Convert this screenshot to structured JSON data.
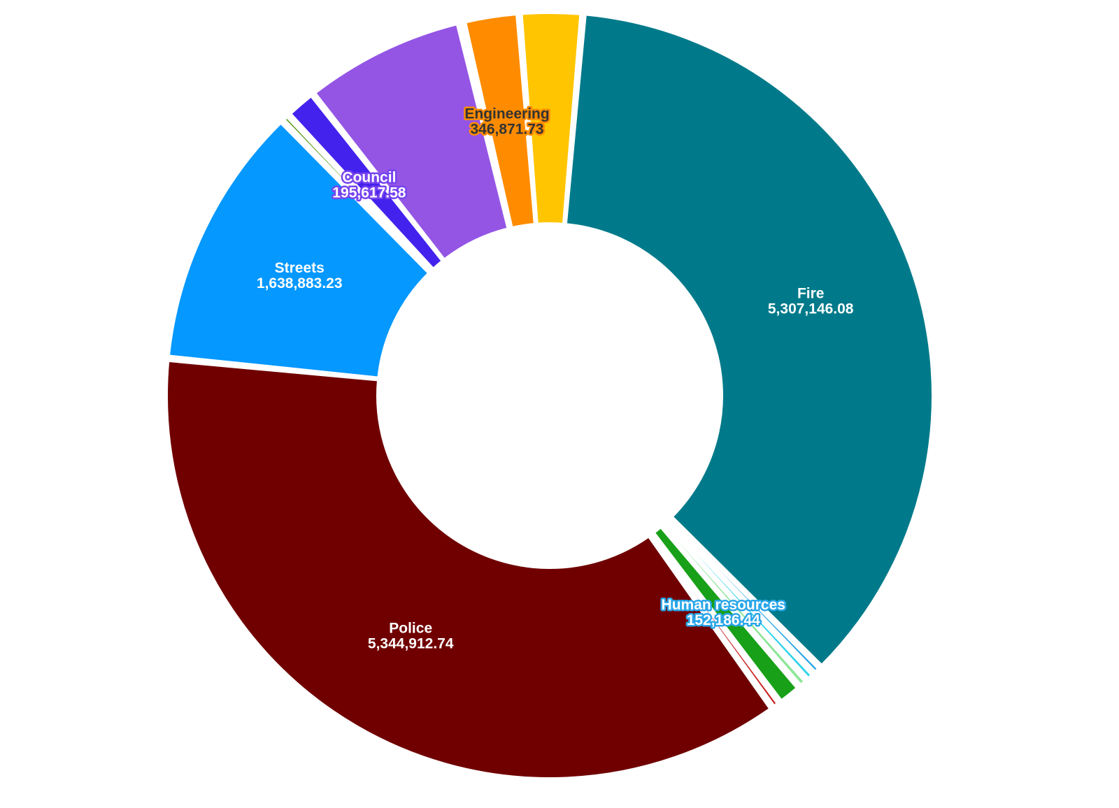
{
  "chart_data": {
    "type": "pie",
    "donut": true,
    "slices": [
      {
        "label": "Fire",
        "value": 5307146.08,
        "value_text": "5,307,146.08",
        "color": "#007a8a",
        "label_color": "#ffffff",
        "halo_color": "#007a8a",
        "show_label": true
      },
      {
        "label": "",
        "value": 55000,
        "value_text": "",
        "color": "#1ea1e6",
        "show_label": false
      },
      {
        "label": "",
        "value": 58000,
        "value_text": "",
        "color": "#2fd3ea",
        "show_label": false
      },
      {
        "label": "",
        "value": 62000,
        "value_text": "",
        "color": "#8ee698",
        "show_label": false
      },
      {
        "label": "Human resources",
        "value": 152186.44,
        "value_text": "152,186.44",
        "color": "#18a018",
        "label_color": "#ffffff",
        "halo_color": "#2aa6e8",
        "show_label": true
      },
      {
        "label": "",
        "value": 55000,
        "value_text": "",
        "color": "#cc2222",
        "show_label": false
      },
      {
        "label": "Police",
        "value": 5344912.74,
        "value_text": "5,344,912.74",
        "color": "#700000",
        "label_color": "#ffffff",
        "halo_color": "#700000",
        "show_label": true
      },
      {
        "label": "Streets",
        "value": 1638883.23,
        "value_text": "1,638,883.23",
        "color": "#0598ff",
        "label_color": "#ffffff",
        "halo_color": "#0598ff",
        "show_label": true
      },
      {
        "label": "",
        "value": 52000,
        "value_text": "",
        "color": "#5a9a18",
        "show_label": false
      },
      {
        "label": "Council",
        "value": 195617.58,
        "value_text": "195,617.58",
        "color": "#4422ee",
        "label_color": "#ffffff",
        "halo_color": "#7744ee",
        "show_label": true
      },
      {
        "label": "",
        "value": 1000000,
        "value_text": "",
        "color": "#9455e5",
        "show_label": false
      },
      {
        "label": "",
        "value": 22000,
        "value_text": "",
        "color": "#f57aa0",
        "show_label": false
      },
      {
        "label": "Engineering",
        "value": 346871.73,
        "value_text": "346,871.73",
        "color": "#ff8c00",
        "label_color": "#333333",
        "halo_color": "#ff8c00",
        "show_label": true
      },
      {
        "label": "",
        "value": 390000,
        "value_text": "",
        "color": "#ffc500",
        "show_label": false
      }
    ]
  }
}
